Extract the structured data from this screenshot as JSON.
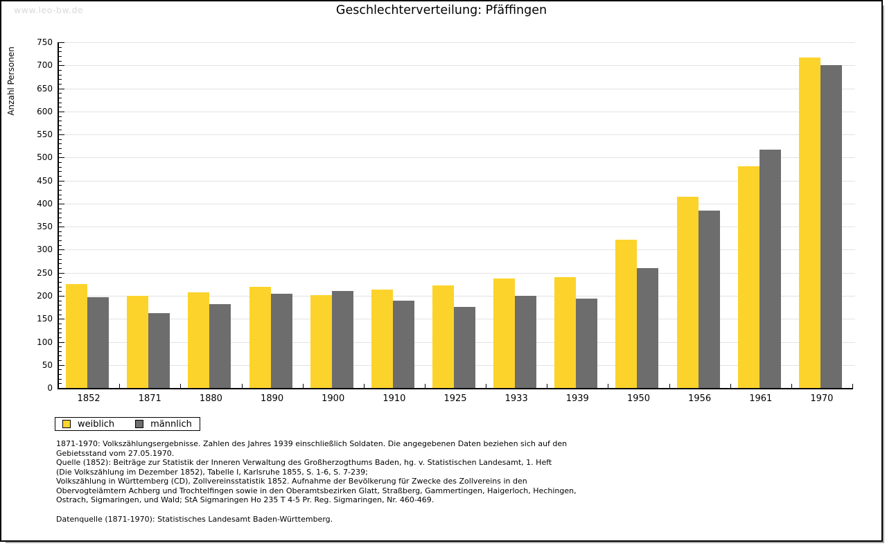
{
  "watermark": "www.leo-bw.de",
  "title": "Geschlechterverteilung: Pfäffingen",
  "colors": {
    "weiblich": "#fcd32b",
    "maennlich": "#6d6d6d",
    "grid": "#e2e2e2",
    "axis": "#000000",
    "watermark": "#d9d9d9",
    "frame_shadow": "#a9a9a9"
  },
  "chart_data": {
    "type": "bar",
    "title": "Geschlechterverteilung: Pfäffingen",
    "xlabel": "",
    "ylabel": "Anzahl Personen",
    "categories": [
      "1852",
      "1871",
      "1880",
      "1890",
      "1900",
      "1910",
      "1925",
      "1933",
      "1939",
      "1950",
      "1956",
      "1961",
      "1970"
    ],
    "series": [
      {
        "name": "weiblich",
        "color": "#fcd32b",
        "values": [
          225,
          200,
          207,
          219,
          202,
          214,
          223,
          237,
          240,
          321,
          415,
          481,
          717
        ]
      },
      {
        "name": "männlich",
        "color": "#6d6d6d",
        "values": [
          197,
          162,
          182,
          204,
          210,
          189,
          176,
          200,
          194,
          260,
          385,
          517,
          700
        ]
      }
    ],
    "ylim": [
      0,
      750
    ],
    "ytick_step": 50,
    "ytick_minor_step": 10,
    "grid": true,
    "legend_position": "bottom-left"
  },
  "legend": {
    "items": [
      {
        "label": "weiblich",
        "color": "#fcd32b"
      },
      {
        "label": "männlich",
        "color": "#6d6d6d"
      }
    ]
  },
  "footer": {
    "lines": [
      "1871-1970: Volkszählungsergebnisse. Zahlen des Jahres 1939 einschließlich Soldaten. Die angegebenen Daten beziehen sich auf den",
      "Gebietsstand vom 27.05.1970.",
      "Quelle (1852): Beiträge zur Statistik der Inneren Verwaltung des Großherzogthums Baden, hg. v. Statistischen Landesamt, 1. Heft",
      "(Die Volkszählung im Dezember 1852), Tabelle I, Karlsruhe 1855, S. 1-6, S. 7-239;",
      "Volkszählung in Württemberg (CD), Zollvereinsstatistik 1852. Aufnahme der Bevölkerung für Zwecke des Zollvereins in den",
      "Obervogteiämtern Achberg und Trochtelfingen sowie in den Oberamtsbezirken Glatt, Straßberg, Gammertingen, Haigerloch, Hechingen,",
      "Ostrach, Sigmaringen, und Wald; StA Sigmaringen Ho 235 T 4-5 Pr. Reg. Sigmaringen, Nr. 460-469."
    ],
    "datasource": "Datenquelle (1871-1970): Statistisches Landesamt Baden-Württemberg."
  }
}
